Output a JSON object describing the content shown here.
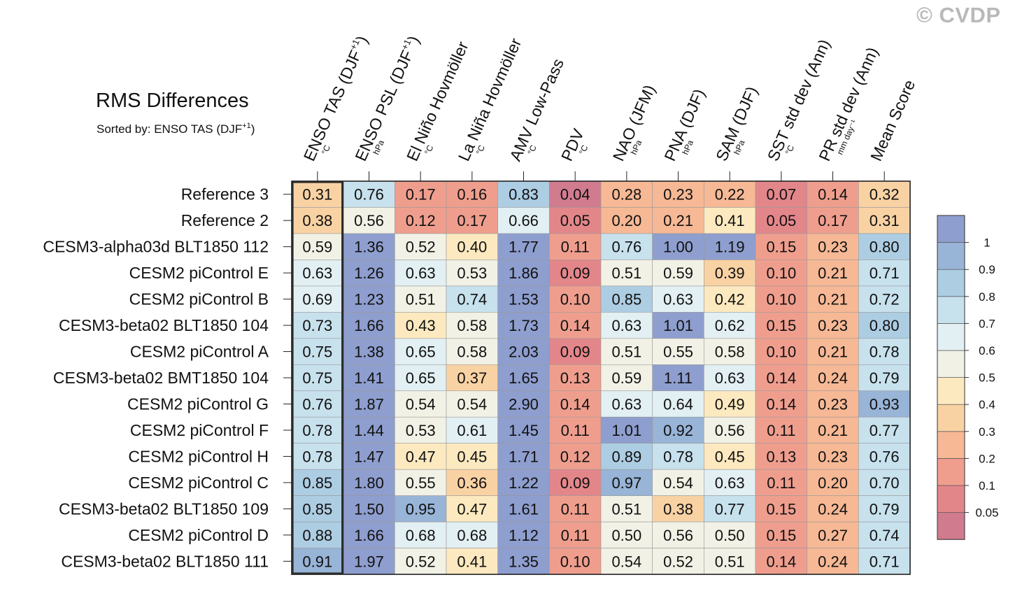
{
  "watermark": "© CVDP",
  "title": "RMS Differences",
  "subtitle_prefix": "Sorted by: ENSO TAS (DJF",
  "subtitle_sup": "+1",
  "subtitle_suffix": ")",
  "chart_data": {
    "type": "heatmap",
    "title": "RMS Differences",
    "sorted_by": "ENSO TAS (DJF+1)",
    "columns": [
      {
        "label": "ENSO TAS (DJF",
        "sup": "+1",
        "tail": ")",
        "unit": "°C"
      },
      {
        "label": "ENSO PSL (DJF",
        "sup": "+1",
        "tail": ")",
        "unit": "hPa"
      },
      {
        "label": "El Niño Hovmöller",
        "sup": "",
        "tail": "",
        "unit": "°C"
      },
      {
        "label": "La Niña Hovmöller",
        "sup": "",
        "tail": "",
        "unit": "°C"
      },
      {
        "label": "AMV Low-Pass",
        "sup": "",
        "tail": "",
        "unit": "°C"
      },
      {
        "label": "PDV",
        "sup": "",
        "tail": "",
        "unit": "°C"
      },
      {
        "label": "NAO (JFM)",
        "sup": "",
        "tail": "",
        "unit": "hPa"
      },
      {
        "label": "PNA (DJF)",
        "sup": "",
        "tail": "",
        "unit": "hPa"
      },
      {
        "label": "SAM (DJF)",
        "sup": "",
        "tail": "",
        "unit": "hPa"
      },
      {
        "label": "SST std dev (Ann)",
        "sup": "",
        "tail": "",
        "unit": "°C"
      },
      {
        "label": "PR std dev (Ann)",
        "sup": "",
        "tail": "",
        "unit": "mm day⁻¹"
      },
      {
        "label": "Mean Score",
        "sup": "",
        "tail": "",
        "unit": ""
      }
    ],
    "rows": [
      {
        "name": "Reference 3",
        "values": [
          0.31,
          0.76,
          0.17,
          0.16,
          0.83,
          0.04,
          0.28,
          0.23,
          0.22,
          0.07,
          0.14,
          0.32
        ]
      },
      {
        "name": "Reference 2",
        "values": [
          0.38,
          0.56,
          0.12,
          0.17,
          0.66,
          0.05,
          0.2,
          0.21,
          0.41,
          0.05,
          0.17,
          0.31
        ]
      },
      {
        "name": "CESM3-alpha03d BLT1850 112",
        "values": [
          0.59,
          1.36,
          0.52,
          0.4,
          1.77,
          0.11,
          0.76,
          1.0,
          1.19,
          0.15,
          0.23,
          0.8
        ]
      },
      {
        "name": "CESM2 piControl E",
        "values": [
          0.63,
          1.26,
          0.63,
          0.53,
          1.86,
          0.09,
          0.51,
          0.59,
          0.39,
          0.1,
          0.21,
          0.71
        ]
      },
      {
        "name": "CESM2 piControl B",
        "values": [
          0.69,
          1.23,
          0.51,
          0.74,
          1.53,
          0.1,
          0.85,
          0.63,
          0.42,
          0.1,
          0.21,
          0.72
        ]
      },
      {
        "name": "CESM3-beta02 BLT1850 104",
        "values": [
          0.73,
          1.66,
          0.43,
          0.58,
          1.73,
          0.14,
          0.63,
          1.01,
          0.62,
          0.15,
          0.23,
          0.8
        ]
      },
      {
        "name": "CESM2 piControl A",
        "values": [
          0.75,
          1.38,
          0.65,
          0.58,
          2.03,
          0.09,
          0.51,
          0.55,
          0.58,
          0.1,
          0.21,
          0.78
        ]
      },
      {
        "name": "CESM3-beta02 BMT1850 104",
        "values": [
          0.75,
          1.41,
          0.65,
          0.37,
          1.65,
          0.13,
          0.59,
          1.11,
          0.63,
          0.14,
          0.24,
          0.79
        ]
      },
      {
        "name": "CESM2 piControl G",
        "values": [
          0.76,
          1.87,
          0.54,
          0.54,
          2.9,
          0.14,
          0.63,
          0.64,
          0.49,
          0.14,
          0.23,
          0.93
        ]
      },
      {
        "name": "CESM2 piControl F",
        "values": [
          0.78,
          1.44,
          0.53,
          0.61,
          1.45,
          0.11,
          1.01,
          0.92,
          0.56,
          0.11,
          0.21,
          0.77
        ]
      },
      {
        "name": "CESM2 piControl H",
        "values": [
          0.78,
          1.47,
          0.47,
          0.45,
          1.71,
          0.12,
          0.89,
          0.78,
          0.45,
          0.13,
          0.23,
          0.76
        ]
      },
      {
        "name": "CESM2 piControl C",
        "values": [
          0.85,
          1.8,
          0.55,
          0.36,
          1.22,
          0.09,
          0.97,
          0.54,
          0.63,
          0.11,
          0.2,
          0.7
        ]
      },
      {
        "name": "CESM3-beta02 BLT1850 109",
        "values": [
          0.85,
          1.5,
          0.95,
          0.47,
          1.61,
          0.11,
          0.51,
          0.38,
          0.77,
          0.15,
          0.24,
          0.79
        ]
      },
      {
        "name": "CESM2 piControl D",
        "values": [
          0.88,
          1.66,
          0.68,
          0.68,
          1.12,
          0.11,
          0.5,
          0.56,
          0.5,
          0.15,
          0.27,
          0.74
        ]
      },
      {
        "name": "CESM3-beta02 BLT1850 111",
        "values": [
          0.91,
          1.97,
          0.52,
          0.41,
          1.35,
          0.1,
          0.54,
          0.52,
          0.51,
          0.14,
          0.24,
          0.71
        ]
      }
    ],
    "highlighted_column": 0,
    "colorbar": {
      "levels": [
        0.05,
        0.1,
        0.2,
        0.3,
        0.4,
        0.5,
        0.6,
        0.7,
        0.8,
        0.9,
        1
      ],
      "labels": [
        "0.05",
        "0.1",
        "0.2",
        "0.3",
        "0.4",
        "0.5",
        "0.6",
        "0.7",
        "0.8",
        "0.9",
        "1"
      ],
      "colors": [
        "#d17b8f",
        "#e3868a",
        "#ef9e8e",
        "#f6b895",
        "#f9d2a4",
        "#fce9bf",
        "#f2f1e6",
        "#e2eff3",
        "#c7e1ed",
        "#adcde3",
        "#98b4d7",
        "#8e9ece"
      ]
    }
  }
}
